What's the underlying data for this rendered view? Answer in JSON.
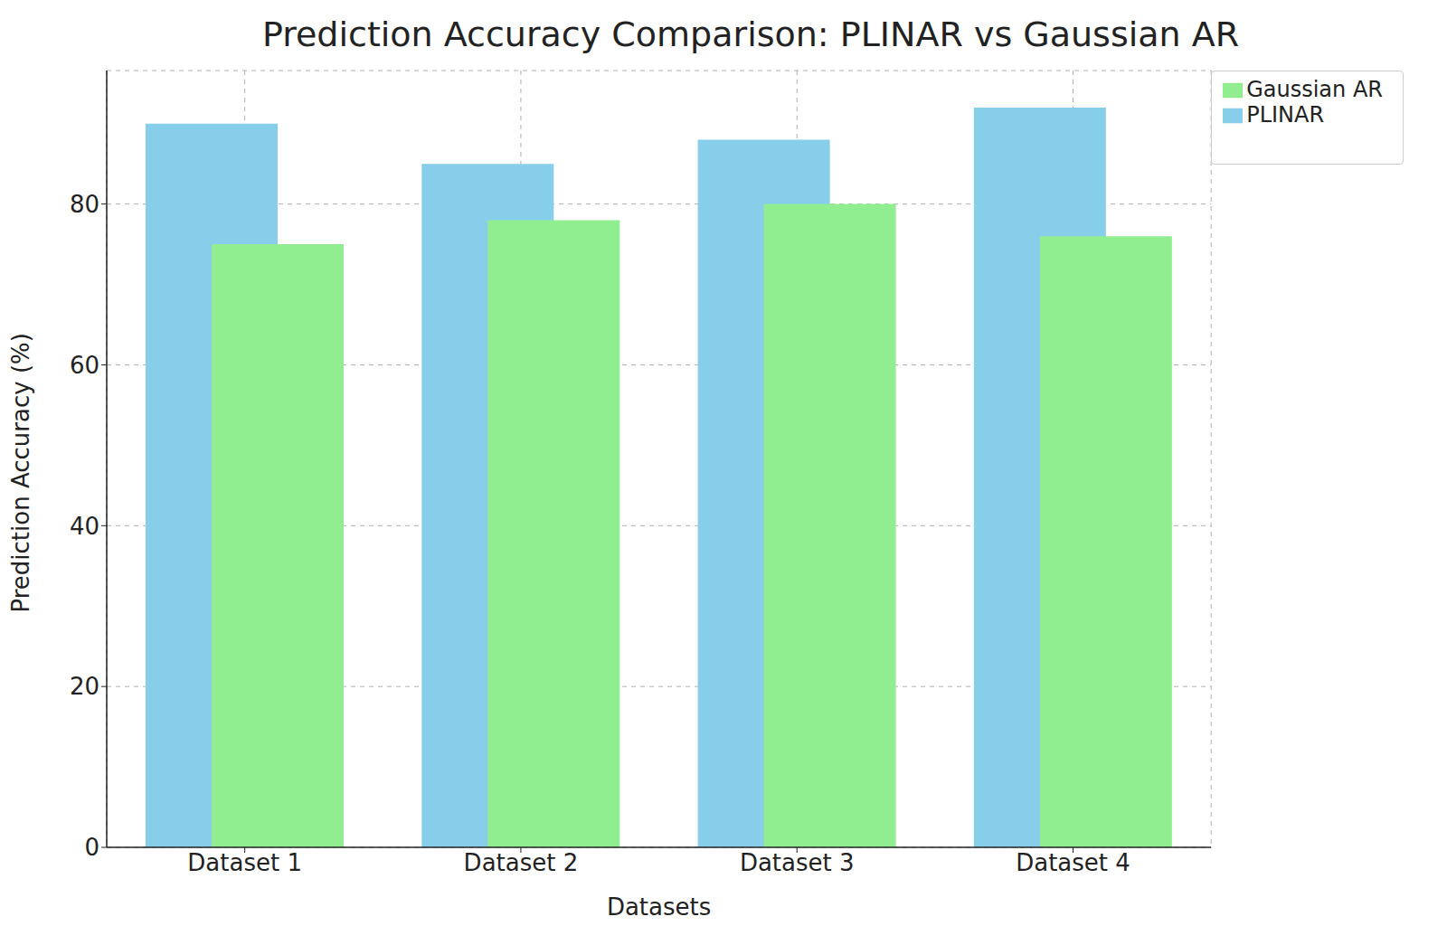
{
  "chart_data": {
    "type": "bar",
    "title": "Prediction Accuracy Comparison: PLINAR vs Gaussian AR",
    "x_label": "Datasets",
    "y_label": "Prediction Accuracy (%)",
    "categories": [
      "Dataset 1",
      "Dataset 2",
      "Dataset 3",
      "Dataset 4"
    ],
    "series": [
      {
        "name": "PLINAR",
        "color": "#87ceeb",
        "values": [
          90,
          85,
          88,
          92
        ]
      },
      {
        "name": "Gaussian AR",
        "color": "#90ee90",
        "values": [
          75,
          78,
          80,
          76
        ]
      }
    ],
    "ylim": [
      0,
      96.6
    ],
    "yticks": [
      0,
      20,
      40,
      60,
      80
    ],
    "grid": true,
    "legend": "upper right"
  }
}
